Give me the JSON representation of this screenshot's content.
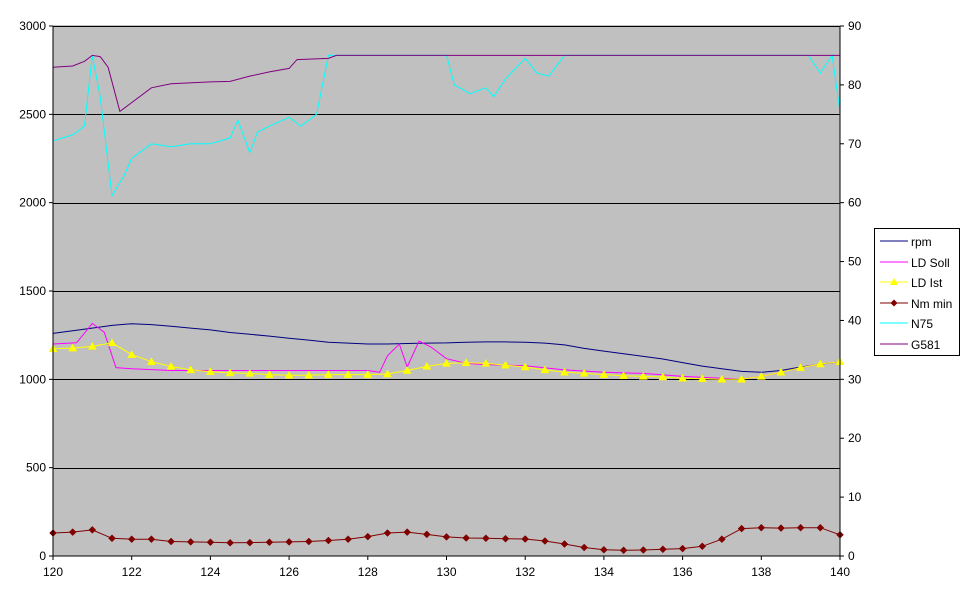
{
  "chart_data": {
    "type": "line",
    "title": "",
    "xlabel": "",
    "ylabel": "",
    "y2label": "",
    "xlim": [
      120,
      140
    ],
    "ylim": [
      0,
      3000
    ],
    "y2lim": [
      0,
      90
    ],
    "x_ticks": [
      "120",
      "122",
      "124",
      "126",
      "128",
      "130",
      "132",
      "134",
      "136",
      "138",
      "140"
    ],
    "y_ticks": [
      "0",
      "500",
      "1000",
      "1500",
      "2000",
      "2500",
      "3000"
    ],
    "y2_ticks": [
      "0",
      "10",
      "20",
      "30",
      "40",
      "50",
      "60",
      "70",
      "80",
      "90"
    ],
    "grid": "horizontal major gridlines on primary axis",
    "plot_background": "#c0c0c0",
    "legend_position": "right",
    "series": [
      {
        "name": "rpm",
        "axis": "primary",
        "color": "#000080",
        "marker": "none",
        "points": [
          [
            120,
            1260
          ],
          [
            120.5,
            1275
          ],
          [
            121,
            1290
          ],
          [
            121.5,
            1305
          ],
          [
            122,
            1315
          ],
          [
            122.5,
            1310
          ],
          [
            123,
            1300
          ],
          [
            123.5,
            1290
          ],
          [
            124,
            1280
          ],
          [
            124.5,
            1265
          ],
          [
            125,
            1255
          ],
          [
            125.5,
            1245
          ],
          [
            126,
            1232
          ],
          [
            126.5,
            1222
          ],
          [
            127,
            1210
          ],
          [
            127.5,
            1205
          ],
          [
            128,
            1200
          ],
          [
            128.5,
            1200
          ],
          [
            129,
            1203
          ],
          [
            129.5,
            1205
          ],
          [
            130,
            1206
          ],
          [
            130.5,
            1210
          ],
          [
            131,
            1212
          ],
          [
            131.5,
            1212
          ],
          [
            132,
            1210
          ],
          [
            132.5,
            1205
          ],
          [
            133,
            1195
          ],
          [
            133.5,
            1175
          ],
          [
            134,
            1160
          ],
          [
            134.5,
            1145
          ],
          [
            135,
            1130
          ],
          [
            135.5,
            1115
          ],
          [
            136,
            1095
          ],
          [
            136.5,
            1075
          ],
          [
            137,
            1060
          ],
          [
            137.5,
            1045
          ],
          [
            138,
            1040
          ],
          [
            138.5,
            1050
          ],
          [
            139,
            1070
          ],
          [
            139.5,
            1085
          ],
          [
            140,
            1100
          ]
        ]
      },
      {
        "name": "LD Soll",
        "axis": "secondary",
        "color": "#ff00ff",
        "marker": "none",
        "points": [
          [
            120,
            36
          ],
          [
            120.6,
            36.2
          ],
          [
            121,
            39.5
          ],
          [
            121.3,
            38
          ],
          [
            121.6,
            32
          ],
          [
            122,
            31.8
          ],
          [
            123,
            31.5
          ],
          [
            124,
            31.5
          ],
          [
            125,
            31.5
          ],
          [
            126,
            31.5
          ],
          [
            127,
            31.5
          ],
          [
            128,
            31.5
          ],
          [
            128.3,
            31.2
          ],
          [
            128.5,
            34
          ],
          [
            128.8,
            36
          ],
          [
            129,
            32.1
          ],
          [
            129.3,
            36.5
          ],
          [
            129.6,
            35.5
          ],
          [
            130,
            33.5
          ],
          [
            130.5,
            32.7
          ],
          [
            131,
            32.5
          ],
          [
            132,
            32.3
          ],
          [
            133,
            31.6
          ],
          [
            134,
            31.2
          ],
          [
            135,
            31
          ],
          [
            136,
            30.5
          ],
          [
            137,
            30.2
          ],
          [
            137.5,
            30
          ],
          [
            138,
            30.5
          ],
          [
            138.5,
            31.2
          ],
          [
            139,
            32
          ],
          [
            139.5,
            32.6
          ],
          [
            140,
            33
          ]
        ]
      },
      {
        "name": "LD Ist",
        "axis": "secondary",
        "color": "#ffff00",
        "marker": "triangle",
        "points": [
          [
            120,
            35.2
          ],
          [
            120.5,
            35.3
          ],
          [
            121,
            35.6
          ],
          [
            121.5,
            36.2
          ],
          [
            122,
            34.2
          ],
          [
            122.5,
            33
          ],
          [
            123,
            32.2
          ],
          [
            123.5,
            31.6
          ],
          [
            124,
            31.3
          ],
          [
            124.5,
            31.1
          ],
          [
            125,
            31
          ],
          [
            125.5,
            30.8
          ],
          [
            126,
            30.7
          ],
          [
            126.5,
            30.7
          ],
          [
            127,
            30.8
          ],
          [
            127.5,
            30.8
          ],
          [
            128,
            30.8
          ],
          [
            128.5,
            30.9
          ],
          [
            129,
            31.5
          ],
          [
            129.5,
            32.2
          ],
          [
            130,
            32.7
          ],
          [
            130.5,
            32.8
          ],
          [
            131,
            32.7
          ],
          [
            131.5,
            32.4
          ],
          [
            132,
            32.1
          ],
          [
            132.5,
            31.6
          ],
          [
            133,
            31.2
          ],
          [
            133.5,
            31
          ],
          [
            134,
            30.8
          ],
          [
            134.5,
            30.6
          ],
          [
            135,
            30.5
          ],
          [
            135.5,
            30.4
          ],
          [
            136,
            30.2
          ],
          [
            136.5,
            30.1
          ],
          [
            137,
            30
          ],
          [
            137.5,
            30
          ],
          [
            138,
            30.5
          ],
          [
            138.5,
            31.2
          ],
          [
            139,
            32
          ],
          [
            139.5,
            32.6
          ],
          [
            140,
            33
          ]
        ]
      },
      {
        "name": "Nm min",
        "axis": "primary",
        "color": "#800000",
        "marker": "diamond",
        "points": [
          [
            120,
            130
          ],
          [
            120.5,
            135
          ],
          [
            121,
            148
          ],
          [
            121.5,
            100
          ],
          [
            122,
            95
          ],
          [
            122.5,
            95
          ],
          [
            123,
            82
          ],
          [
            123.5,
            80
          ],
          [
            124,
            78
          ],
          [
            124.5,
            75
          ],
          [
            125,
            76
          ],
          [
            125.5,
            78
          ],
          [
            126,
            80
          ],
          [
            126.5,
            82
          ],
          [
            127,
            88
          ],
          [
            127.5,
            95
          ],
          [
            128,
            110
          ],
          [
            128.5,
            130
          ],
          [
            129,
            135
          ],
          [
            129.5,
            122
          ],
          [
            130,
            108
          ],
          [
            130.5,
            102
          ],
          [
            131,
            100
          ],
          [
            131.5,
            98
          ],
          [
            132,
            96
          ],
          [
            132.5,
            85
          ],
          [
            133,
            68
          ],
          [
            133.5,
            48
          ],
          [
            134,
            35
          ],
          [
            134.5,
            32
          ],
          [
            135,
            34
          ],
          [
            135.5,
            38
          ],
          [
            136,
            42
          ],
          [
            136.5,
            55
          ],
          [
            137,
            95
          ],
          [
            137.5,
            155
          ],
          [
            138,
            160
          ],
          [
            138.5,
            158
          ],
          [
            139,
            160
          ],
          [
            139.5,
            160
          ],
          [
            140,
            120
          ]
        ]
      },
      {
        "name": "N75",
        "axis": "secondary",
        "color": "#00ffff",
        "marker": "none",
        "points": [
          [
            120,
            70.5
          ],
          [
            120.5,
            71.5
          ],
          [
            120.8,
            73
          ],
          [
            121,
            85
          ],
          [
            121.2,
            78
          ],
          [
            121.5,
            61.2
          ],
          [
            121.8,
            64.5
          ],
          [
            122,
            67.5
          ],
          [
            122.5,
            70
          ],
          [
            123,
            69.5
          ],
          [
            123.5,
            70
          ],
          [
            124,
            70
          ],
          [
            124.5,
            71
          ],
          [
            124.7,
            74
          ],
          [
            125,
            68.5
          ],
          [
            125.2,
            72
          ],
          [
            125.5,
            73
          ],
          [
            126,
            74.5
          ],
          [
            126.3,
            73
          ],
          [
            126.7,
            75
          ],
          [
            127,
            85
          ],
          [
            130,
            85
          ],
          [
            130.2,
            80
          ],
          [
            130.6,
            78.5
          ],
          [
            131,
            79.5
          ],
          [
            131.2,
            78
          ],
          [
            131.5,
            81
          ],
          [
            132,
            84.5
          ],
          [
            132.3,
            82
          ],
          [
            132.6,
            81.5
          ],
          [
            133,
            85
          ],
          [
            139.2,
            85
          ],
          [
            139.5,
            82
          ],
          [
            139.8,
            85
          ],
          [
            140,
            75.5
          ]
        ]
      },
      {
        "name": "G581",
        "axis": "secondary",
        "color": "#800080",
        "marker": "none",
        "points": [
          [
            120,
            83
          ],
          [
            120.5,
            83.2
          ],
          [
            120.8,
            84
          ],
          [
            121,
            85
          ],
          [
            121.2,
            84.8
          ],
          [
            121.4,
            83
          ],
          [
            121.7,
            75.5
          ],
          [
            122,
            77
          ],
          [
            122.5,
            79.5
          ],
          [
            123,
            80.2
          ],
          [
            124,
            80.5
          ],
          [
            124.5,
            80.6
          ],
          [
            125,
            81.5
          ],
          [
            125.5,
            82.2
          ],
          [
            126,
            82.8
          ],
          [
            126.2,
            84.3
          ],
          [
            127,
            84.5
          ],
          [
            127.2,
            85
          ],
          [
            140,
            85
          ],
          [
            140,
            79
          ]
        ]
      }
    ]
  }
}
